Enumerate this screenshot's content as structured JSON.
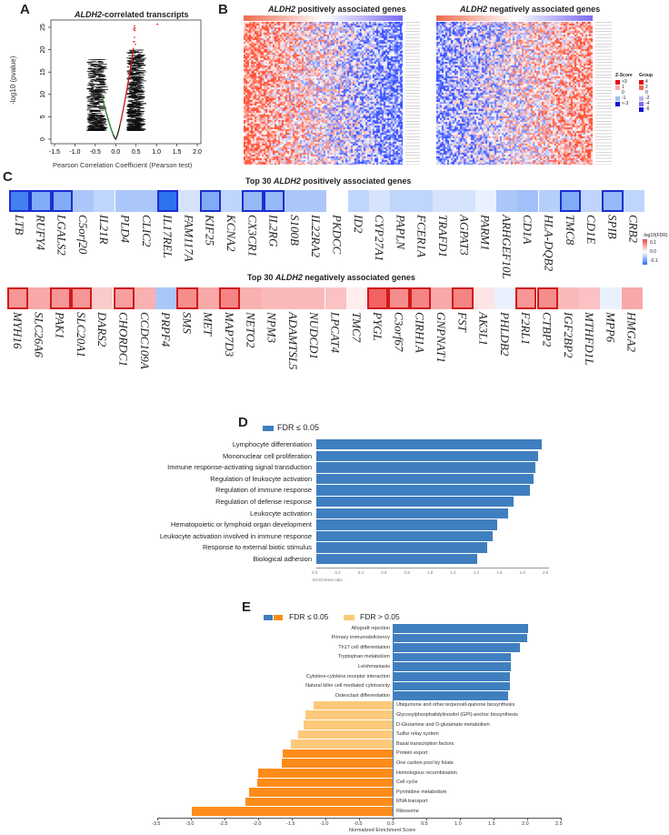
{
  "panels": {
    "a": "A",
    "b": "B",
    "c": "C",
    "d": "D",
    "e": "E"
  },
  "chart_data": [
    {
      "type": "scatter",
      "id": "A",
      "title_italic": "ALDH2",
      "title_rest": "-correlated transcripts",
      "xlabel": "Pearson Correlation Coefficient (Pearson test)",
      "ylabel": "-log10 (pvalue)",
      "xlim": [
        -1.5,
        2.0
      ],
      "ylim": [
        0,
        25
      ],
      "xticks": [
        "-1.5",
        "-1.0",
        "-0.5",
        "0.0",
        "0.5",
        "1.0",
        "1.5",
        "2.0"
      ],
      "yticks": [
        "0",
        "5",
        "10",
        "15",
        "20",
        "25"
      ],
      "colors": {
        "negative": "#2a8a2a",
        "positive": "#e02020",
        "other": "#111111"
      }
    },
    {
      "type": "heatmap",
      "id": "B",
      "titles": [
        {
          "italic": "ALDH2",
          "rest": " positively associated genes"
        },
        {
          "italic": "ALDH2",
          "rest": " negatively associated genes"
        }
      ],
      "zscore_legend": {
        "title": "Z-Score",
        "labels": [
          ">3",
          "1",
          "0",
          "-1",
          "<-3"
        ]
      },
      "group_legend": {
        "title": "Group",
        "labels": [
          "4",
          "2",
          "0",
          "-2",
          "-4",
          "-6"
        ]
      }
    },
    {
      "type": "heatmap",
      "id": "C",
      "legend_title": "-log10(FDR)",
      "legend_ticks": [
        "0.1",
        "0.0",
        "-0.1"
      ],
      "rows": [
        {
          "title_pre": "Top 30 ",
          "title_italic": "ALDH2",
          "title_post": " positively associated genes",
          "genes": [
            "LTB",
            "RUFY4",
            "LGALS2",
            "C5orf20",
            "IL21R",
            "PLD4",
            "CLIC2",
            "IL17REL",
            "FAM117A",
            "KIF25",
            "KCNA2",
            "CX3CR1",
            "IL2RG",
            "S100B",
            "IL22RA2",
            "PKDCC",
            "ID2",
            "CYP27A1",
            "PAPLN",
            "FCER1A",
            "TRAFD1",
            "AGPAT3",
            "PARM1",
            "ARHGEF10L",
            "CD1A",
            "HLA-DQB2",
            "TMC8",
            "CD1E",
            "SPIB",
            "CRB2"
          ],
          "values": [
            -0.09,
            -0.06,
            -0.06,
            -0.04,
            -0.03,
            -0.04,
            -0.04,
            -0.1,
            -0.02,
            -0.06,
            -0.03,
            -0.05,
            -0.05,
            -0.04,
            -0.04,
            0.0,
            -0.03,
            -0.02,
            -0.03,
            -0.03,
            -0.02,
            -0.02,
            -0.01,
            -0.04,
            -0.045,
            -0.035,
            -0.06,
            -0.03,
            -0.05,
            -0.03
          ],
          "highlighted": [
            1,
            1,
            1,
            0,
            0,
            0,
            0,
            1,
            0,
            1,
            0,
            1,
            1,
            0,
            0,
            0,
            0,
            0,
            0,
            0,
            0,
            0,
            0,
            0,
            0,
            0,
            1,
            0,
            1,
            0
          ]
        },
        {
          "title_pre": "Top 30 ",
          "title_italic": "ALDH2",
          "title_post": " negatively associated genes",
          "genes": [
            "MYH16",
            "SLC26A6",
            "PAK1",
            "SLC20A1",
            "DARS2",
            "CHORDC1",
            "CCDC109A",
            "PRPF4",
            "SMS",
            "MET",
            "MAP7D3",
            "NETO2",
            "NPM3",
            "ADAMTSL5",
            "NUDCD1",
            "LPCAT4",
            "TMC7",
            "PYGL",
            "C3orf67",
            "CIRH1A",
            "GNPNAT1",
            "FST",
            "AK3L1",
            "PHLDB2",
            "F2RL1",
            "CTBP2",
            "IGF2BP2",
            "MTHFD1L",
            "MPP6",
            "HMGA2"
          ],
          "values": [
            0.06,
            0.05,
            0.06,
            0.06,
            0.03,
            0.055,
            0.045,
            -0.04,
            0.065,
            0.05,
            0.07,
            0.045,
            0.04,
            0.04,
            0.04,
            0.035,
            0.01,
            0.09,
            0.065,
            0.07,
            0.05,
            0.07,
            0.015,
            -0.01,
            0.06,
            0.065,
            0.04,
            0.035,
            -0.01,
            0.05
          ],
          "highlighted": [
            1,
            0,
            1,
            1,
            0,
            1,
            0,
            0,
            1,
            0,
            1,
            0,
            0,
            0,
            0,
            0,
            0,
            1,
            1,
            1,
            0,
            1,
            0,
            0,
            1,
            1,
            0,
            0,
            0,
            0
          ]
        }
      ]
    },
    {
      "type": "bar",
      "id": "D",
      "legend": "FDR ≤ 0.05",
      "color": "#3f7fbf",
      "categories": [
        "Lymphocyte differentiation",
        "Mononuclear cell proliferation",
        "Immune response-activating signal transduction",
        "Regulation of leukocyte activation",
        "Regulation of immune response",
        "Regulation of defense response",
        "Leukocyte activation",
        "Hematopoietic or lymphoid organ development",
        "Leukocyte activation involved in immune response",
        "Response to external biotic stimulus",
        "Biological adhesion"
      ],
      "values": [
        1.95,
        1.92,
        1.9,
        1.88,
        1.85,
        1.71,
        1.66,
        1.57,
        1.53,
        1.48,
        1.39
      ],
      "xlabel": "Enrichment ratio",
      "xlim": [
        0,
        2.0
      ],
      "xticks": [
        "0.0",
        "0.2",
        "0.4",
        "0.6",
        "0.8",
        "1.0",
        "1.2",
        "1.4",
        "1.6",
        "1.8",
        "2.0"
      ]
    },
    {
      "type": "bar",
      "id": "E",
      "legend": [
        {
          "label": "FDR ≤ 0.05",
          "colors": [
            "#3f7fbf",
            "#ff8c1a"
          ]
        },
        {
          "label": "FDR > 0.05",
          "colors": [
            "#fdc97a"
          ]
        }
      ],
      "categories": [
        "Allograft rejection",
        "Primary immunodeficiency",
        "Th17 cell differentiation",
        "Tryptophan metabolism",
        "Leishmaniasis",
        "Cytokine-cytokine receptor interaction",
        "Natural killer cell mediated cytotoxicity",
        "Osteoclast differentiation",
        "Ubiquinone and other terpenoid-quinone biosynthesis",
        "Glycosylphosphatidylinositol (GPI)-anchor biosynthesis",
        "D-Glutamine and D-glutamate metabolism",
        "Sulfur relay system",
        "Basal transcription factors",
        "Protein export",
        "One carbon pool by folate",
        "Homologous recombination",
        "Cell cycle",
        "Pyrimidine metabolism",
        "RNA transport",
        "Ribosome"
      ],
      "values": [
        2.01,
        2.0,
        1.89,
        1.75,
        1.75,
        1.74,
        1.74,
        1.72,
        -1.18,
        -1.3,
        -1.32,
        -1.4,
        -1.51,
        -1.63,
        -1.65,
        -2.0,
        -2.02,
        -2.13,
        -2.19,
        -2.99
      ],
      "significant": [
        1,
        1,
        1,
        1,
        1,
        1,
        1,
        1,
        0,
        0,
        0,
        0,
        0,
        1,
        1,
        1,
        1,
        1,
        1,
        1
      ],
      "xlabel": "Normalized Enrichment Score",
      "xlim": [
        -3.5,
        2.5
      ],
      "xticks": [
        "-3.5",
        "-3.0",
        "-2.5",
        "-2.0",
        "-1.5",
        "-1.0",
        "-0.5",
        "0.0",
        "0.5",
        "1.0",
        "1.5",
        "2.0",
        "2.5"
      ]
    }
  ]
}
